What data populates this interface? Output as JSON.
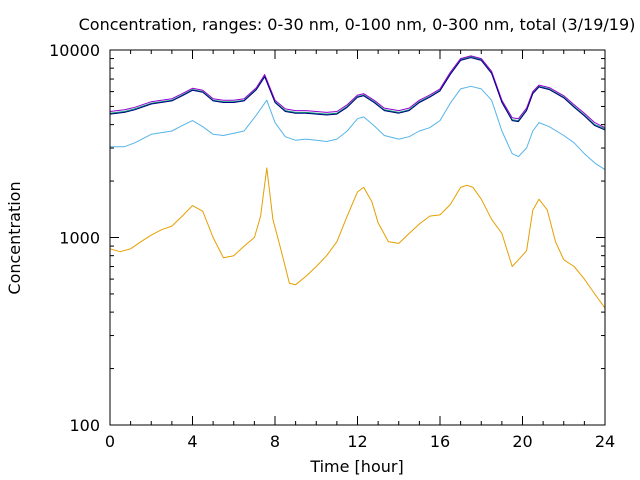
{
  "chart_data": {
    "type": "line",
    "title": "Concentration, ranges: 0-30 nm, 0-100 nm, 0-300 nm, total (3/19/19)",
    "xlabel": "Time [hour]",
    "ylabel": "Concentration",
    "xlim": [
      0,
      24
    ],
    "ylim": [
      100,
      10000
    ],
    "y_scale": "log",
    "x_ticks": [
      0,
      4,
      8,
      12,
      16,
      20,
      24
    ],
    "x_tick_labels": [
      "0",
      "4",
      "8",
      "12",
      "16",
      "20",
      "24"
    ],
    "y_ticks": [
      100,
      1000,
      10000
    ],
    "y_tick_labels": [
      "100",
      "1000",
      "10000"
    ],
    "grid": false,
    "legend": "none",
    "series": [
      {
        "color": "#E69F00",
        "points": [
          [
            0,
            870
          ],
          [
            0.5,
            840
          ],
          [
            1,
            870
          ],
          [
            1.5,
            950
          ],
          [
            2,
            1030
          ],
          [
            2.5,
            1100
          ],
          [
            3,
            1150
          ],
          [
            3.5,
            1300
          ],
          [
            4,
            1480
          ],
          [
            4.5,
            1380
          ],
          [
            5,
            1000
          ],
          [
            5.5,
            780
          ],
          [
            6,
            800
          ],
          [
            6.5,
            900
          ],
          [
            7,
            1000
          ],
          [
            7.3,
            1300
          ],
          [
            7.6,
            2350
          ],
          [
            7.9,
            1250
          ],
          [
            8.3,
            850
          ],
          [
            8.7,
            570
          ],
          [
            9,
            560
          ],
          [
            9.5,
            620
          ],
          [
            10,
            700
          ],
          [
            10.5,
            800
          ],
          [
            11,
            950
          ],
          [
            11.5,
            1300
          ],
          [
            12,
            1750
          ],
          [
            12.3,
            1850
          ],
          [
            12.7,
            1550
          ],
          [
            13,
            1200
          ],
          [
            13.5,
            950
          ],
          [
            14,
            930
          ],
          [
            14.5,
            1050
          ],
          [
            15,
            1180
          ],
          [
            15.5,
            1300
          ],
          [
            16,
            1320
          ],
          [
            16.5,
            1500
          ],
          [
            17,
            1850
          ],
          [
            17.3,
            1900
          ],
          [
            17.6,
            1850
          ],
          [
            18,
            1600
          ],
          [
            18.5,
            1250
          ],
          [
            19,
            1050
          ],
          [
            19.5,
            700
          ],
          [
            19.8,
            760
          ],
          [
            20.2,
            850
          ],
          [
            20.5,
            1400
          ],
          [
            20.8,
            1600
          ],
          [
            21.2,
            1400
          ],
          [
            21.6,
            950
          ],
          [
            22,
            760
          ],
          [
            22.5,
            700
          ],
          [
            23,
            600
          ],
          [
            23.5,
            500
          ],
          [
            24,
            420
          ]
        ]
      },
      {
        "color": "#56B4E9",
        "points": [
          [
            0,
            3050
          ],
          [
            0.7,
            3050
          ],
          [
            1.2,
            3200
          ],
          [
            2,
            3550
          ],
          [
            3,
            3700
          ],
          [
            3.5,
            3950
          ],
          [
            4,
            4200
          ],
          [
            4.5,
            3900
          ],
          [
            5,
            3550
          ],
          [
            5.5,
            3500
          ],
          [
            6,
            3600
          ],
          [
            6.5,
            3700
          ],
          [
            7.1,
            4500
          ],
          [
            7.6,
            5400
          ],
          [
            8,
            4100
          ],
          [
            8.5,
            3450
          ],
          [
            9,
            3300
          ],
          [
            9.5,
            3350
          ],
          [
            10,
            3300
          ],
          [
            10.5,
            3250
          ],
          [
            11,
            3350
          ],
          [
            11.5,
            3700
          ],
          [
            12,
            4300
          ],
          [
            12.3,
            4400
          ],
          [
            12.8,
            3950
          ],
          [
            13.3,
            3500
          ],
          [
            14,
            3350
          ],
          [
            14.5,
            3450
          ],
          [
            15,
            3700
          ],
          [
            15.5,
            3850
          ],
          [
            16,
            4200
          ],
          [
            16.5,
            5200
          ],
          [
            17,
            6200
          ],
          [
            17.5,
            6400
          ],
          [
            18,
            6200
          ],
          [
            18.5,
            5400
          ],
          [
            19,
            3700
          ],
          [
            19.5,
            2800
          ],
          [
            19.8,
            2700
          ],
          [
            20.2,
            3000
          ],
          [
            20.5,
            3700
          ],
          [
            20.8,
            4100
          ],
          [
            21.3,
            3900
          ],
          [
            22,
            3500
          ],
          [
            22.5,
            3200
          ],
          [
            23,
            2800
          ],
          [
            23.5,
            2500
          ],
          [
            24,
            2300
          ]
        ]
      },
      {
        "color": "#009E73",
        "points": [
          [
            0,
            4600
          ],
          [
            0.7,
            4700
          ],
          [
            1.2,
            4850
          ],
          [
            2,
            5200
          ],
          [
            3,
            5400
          ],
          [
            3.5,
            5750
          ],
          [
            4,
            6150
          ],
          [
            4.5,
            6000
          ],
          [
            5,
            5400
          ],
          [
            5.5,
            5300
          ],
          [
            6,
            5300
          ],
          [
            6.5,
            5400
          ],
          [
            7.1,
            6200
          ],
          [
            7.5,
            7300
          ],
          [
            8,
            5300
          ],
          [
            8.5,
            4750
          ],
          [
            9,
            4650
          ],
          [
            9.5,
            4650
          ],
          [
            10,
            4600
          ],
          [
            10.5,
            4550
          ],
          [
            11,
            4600
          ],
          [
            11.5,
            5000
          ],
          [
            12,
            5650
          ],
          [
            12.3,
            5750
          ],
          [
            12.8,
            5300
          ],
          [
            13.3,
            4800
          ],
          [
            14,
            4650
          ],
          [
            14.5,
            4800
          ],
          [
            15,
            5300
          ],
          [
            15.5,
            5650
          ],
          [
            16,
            6100
          ],
          [
            16.5,
            7500
          ],
          [
            17,
            8900
          ],
          [
            17.5,
            9200
          ],
          [
            18,
            8900
          ],
          [
            18.5,
            7600
          ],
          [
            19,
            5300
          ],
          [
            19.5,
            4250
          ],
          [
            19.8,
            4200
          ],
          [
            20.2,
            4800
          ],
          [
            20.5,
            5900
          ],
          [
            20.8,
            6400
          ],
          [
            21.3,
            6200
          ],
          [
            22,
            5600
          ],
          [
            22.5,
            5000
          ],
          [
            23,
            4500
          ],
          [
            23.5,
            4000
          ],
          [
            24,
            3800
          ]
        ]
      },
      {
        "color": "#9400D3",
        "points": [
          [
            0,
            4700
          ],
          [
            0.7,
            4800
          ],
          [
            1.2,
            4950
          ],
          [
            2,
            5300
          ],
          [
            3,
            5500
          ],
          [
            3.5,
            5850
          ],
          [
            4,
            6250
          ],
          [
            4.5,
            6100
          ],
          [
            5,
            5500
          ],
          [
            5.5,
            5400
          ],
          [
            6,
            5400
          ],
          [
            6.5,
            5500
          ],
          [
            7.1,
            6300
          ],
          [
            7.5,
            7400
          ],
          [
            8,
            5400
          ],
          [
            8.5,
            4850
          ],
          [
            9,
            4750
          ],
          [
            9.5,
            4750
          ],
          [
            10,
            4700
          ],
          [
            10.5,
            4650
          ],
          [
            11,
            4700
          ],
          [
            11.5,
            5100
          ],
          [
            12,
            5750
          ],
          [
            12.3,
            5850
          ],
          [
            12.8,
            5400
          ],
          [
            13.3,
            4900
          ],
          [
            14,
            4750
          ],
          [
            14.5,
            4900
          ],
          [
            15,
            5400
          ],
          [
            15.5,
            5750
          ],
          [
            16,
            6200
          ],
          [
            16.5,
            7600
          ],
          [
            17,
            9000
          ],
          [
            17.5,
            9300
          ],
          [
            18,
            9000
          ],
          [
            18.5,
            7700
          ],
          [
            19,
            5400
          ],
          [
            19.5,
            4350
          ],
          [
            19.8,
            4300
          ],
          [
            20.2,
            4900
          ],
          [
            20.5,
            6000
          ],
          [
            20.8,
            6500
          ],
          [
            21.3,
            6300
          ],
          [
            22,
            5700
          ],
          [
            22.5,
            5100
          ],
          [
            23,
            4600
          ],
          [
            23.5,
            4100
          ],
          [
            24,
            3850
          ]
        ]
      },
      {
        "color": "#000080",
        "points": [
          [
            0,
            4550
          ],
          [
            0.7,
            4650
          ],
          [
            1.2,
            4800
          ],
          [
            2,
            5150
          ],
          [
            3,
            5350
          ],
          [
            3.5,
            5700
          ],
          [
            4,
            6100
          ],
          [
            4.5,
            5950
          ],
          [
            5,
            5350
          ],
          [
            5.5,
            5250
          ],
          [
            6,
            5250
          ],
          [
            6.5,
            5350
          ],
          [
            7.1,
            6150
          ],
          [
            7.5,
            7200
          ],
          [
            8,
            5250
          ],
          [
            8.5,
            4700
          ],
          [
            9,
            4600
          ],
          [
            9.5,
            4600
          ],
          [
            10,
            4550
          ],
          [
            10.5,
            4500
          ],
          [
            11,
            4550
          ],
          [
            11.5,
            4950
          ],
          [
            12,
            5600
          ],
          [
            12.3,
            5700
          ],
          [
            12.8,
            5250
          ],
          [
            13.3,
            4750
          ],
          [
            14,
            4600
          ],
          [
            14.5,
            4750
          ],
          [
            15,
            5250
          ],
          [
            15.5,
            5600
          ],
          [
            16,
            6050
          ],
          [
            16.5,
            7400
          ],
          [
            17,
            8800
          ],
          [
            17.5,
            9100
          ],
          [
            18,
            8800
          ],
          [
            18.5,
            7500
          ],
          [
            19,
            5250
          ],
          [
            19.5,
            4200
          ],
          [
            19.8,
            4150
          ],
          [
            20.2,
            4750
          ],
          [
            20.5,
            5850
          ],
          [
            20.8,
            6350
          ],
          [
            21.3,
            6150
          ],
          [
            22,
            5550
          ],
          [
            22.5,
            4950
          ],
          [
            23,
            4450
          ],
          [
            23.5,
            3950
          ],
          [
            24,
            3750
          ]
        ]
      }
    ]
  }
}
